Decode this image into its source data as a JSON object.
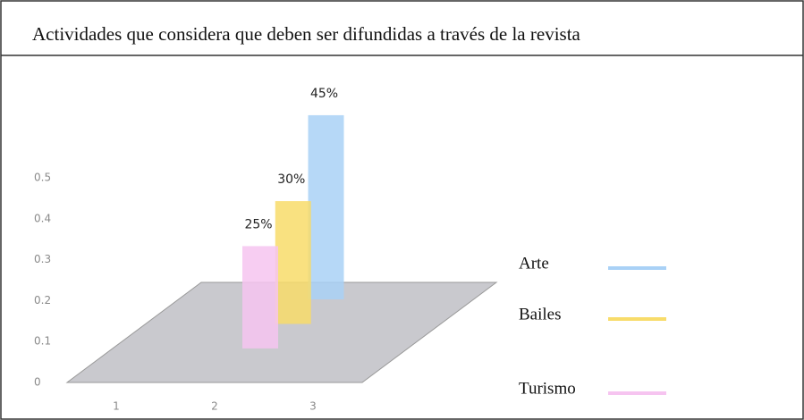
{
  "chart_data": {
    "type": "bar3d",
    "title": "Actividades que considera que deben ser difundidas a través de la revista",
    "categories": [
      "1",
      "2",
      "3"
    ],
    "series": [
      {
        "name": "Arte",
        "color": "#a9d1f6",
        "values": [
          null,
          0.45,
          null
        ],
        "value_labels": [
          null,
          "45%",
          null
        ]
      },
      {
        "name": "Bailes",
        "color": "#f8dc6a",
        "values": [
          null,
          0.3,
          null
        ],
        "value_labels": [
          null,
          "30%",
          null
        ]
      },
      {
        "name": "Turismo",
        "color": "#f6c4f0",
        "values": [
          null,
          0.25,
          null
        ],
        "value_labels": [
          null,
          "25%",
          null
        ]
      }
    ],
    "ylim": [
      0,
      0.5
    ],
    "yticks": [
      0,
      0.1,
      0.2,
      0.3,
      0.4,
      0.5
    ],
    "legend": "right"
  }
}
